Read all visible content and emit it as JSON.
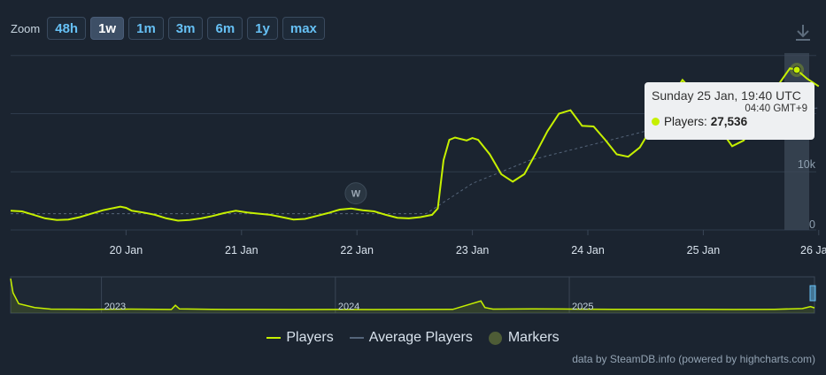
{
  "zoom": {
    "label": "Zoom",
    "buttons": [
      "48h",
      "1w",
      "1m",
      "3m",
      "6m",
      "1y",
      "max"
    ],
    "active": "1w"
  },
  "tooltip": {
    "date": "Sunday 25 Jan, 19:40 UTC",
    "timezone": "04:40 GMT+9",
    "series_label": "Players:",
    "value": "27,536"
  },
  "legend": {
    "players": "Players",
    "average": "Average Players",
    "markers": "Markers"
  },
  "credits": "data by SteamDB.info (powered by highcharts.com)",
  "colors": {
    "players": "#c6f000",
    "average": "#55657a",
    "marker": "#4e5c36",
    "background": "#1b2430"
  },
  "chart_data": {
    "type": "line",
    "x_unit": "days since 19 Jan 00:00 UTC",
    "xticks": [
      "20 Jan",
      "21 Jan",
      "22 Jan",
      "23 Jan",
      "24 Jan",
      "25 Jan",
      "26 Jan"
    ],
    "yticks": [
      "0",
      "10k"
    ],
    "ylim": [
      0,
      30000
    ],
    "grid": true,
    "legend_position": "bottom-center",
    "marker_label": "W",
    "marker": {
      "x": 2.99,
      "y": 6300
    },
    "series": [
      {
        "name": "Players",
        "points": [
          [
            0.0,
            3300
          ],
          [
            0.1,
            3200
          ],
          [
            0.2,
            2600
          ],
          [
            0.3,
            2000
          ],
          [
            0.4,
            1700
          ],
          [
            0.5,
            1800
          ],
          [
            0.6,
            2200
          ],
          [
            0.7,
            2800
          ],
          [
            0.8,
            3400
          ],
          [
            0.9,
            3800
          ],
          [
            0.95,
            4000
          ],
          [
            1.0,
            3800
          ],
          [
            1.05,
            3300
          ],
          [
            1.15,
            3000
          ],
          [
            1.25,
            2600
          ],
          [
            1.35,
            2000
          ],
          [
            1.45,
            1600
          ],
          [
            1.55,
            1700
          ],
          [
            1.65,
            2000
          ],
          [
            1.75,
            2400
          ],
          [
            1.85,
            2900
          ],
          [
            1.95,
            3300
          ],
          [
            2.05,
            3000
          ],
          [
            2.15,
            2800
          ],
          [
            2.25,
            2600
          ],
          [
            2.35,
            2200
          ],
          [
            2.45,
            1800
          ],
          [
            2.55,
            1900
          ],
          [
            2.65,
            2400
          ],
          [
            2.75,
            2900
          ],
          [
            2.85,
            3500
          ],
          [
            2.95,
            3700
          ],
          [
            3.05,
            3400
          ],
          [
            3.15,
            3200
          ],
          [
            3.25,
            2600
          ],
          [
            3.35,
            2100
          ],
          [
            3.45,
            2000
          ],
          [
            3.55,
            2200
          ],
          [
            3.65,
            2600
          ],
          [
            3.7,
            3700
          ],
          [
            3.75,
            12000
          ],
          [
            3.8,
            15500
          ],
          [
            3.85,
            15900
          ],
          [
            3.95,
            15400
          ],
          [
            4.0,
            15800
          ],
          [
            4.05,
            15500
          ],
          [
            4.15,
            13000
          ],
          [
            4.25,
            9600
          ],
          [
            4.35,
            8300
          ],
          [
            4.45,
            9600
          ],
          [
            4.55,
            13200
          ],
          [
            4.65,
            17000
          ],
          [
            4.75,
            20000
          ],
          [
            4.85,
            20600
          ],
          [
            4.95,
            17900
          ],
          [
            5.05,
            17800
          ],
          [
            5.15,
            15500
          ],
          [
            5.25,
            13000
          ],
          [
            5.35,
            12600
          ],
          [
            5.45,
            14200
          ],
          [
            5.55,
            17500
          ],
          [
            5.65,
            21000
          ],
          [
            5.75,
            23700
          ],
          [
            5.82,
            25800
          ],
          [
            5.88,
            24500
          ],
          [
            5.95,
            22000
          ],
          [
            6.05,
            20500
          ],
          [
            6.15,
            17200
          ],
          [
            6.25,
            14400
          ],
          [
            6.35,
            15400
          ],
          [
            6.45,
            18500
          ],
          [
            6.55,
            20900
          ],
          [
            6.65,
            25000
          ],
          [
            6.75,
            27800
          ],
          [
            6.81,
            27536
          ],
          [
            6.9,
            26000
          ],
          [
            7.0,
            24700
          ]
        ]
      },
      {
        "name": "Average Players",
        "points": [
          [
            0.0,
            2800
          ],
          [
            3.6,
            2800
          ],
          [
            4.0,
            8000
          ],
          [
            4.5,
            12000
          ],
          [
            5.0,
            14500
          ],
          [
            5.5,
            17000
          ],
          [
            6.0,
            19500
          ],
          [
            7.0,
            21000
          ]
        ]
      }
    ],
    "navigator": {
      "labels": [
        "2023",
        "2024",
        "2025"
      ],
      "points": [
        [
          0,
          3000
        ],
        [
          0.003,
          1700
        ],
        [
          0.01,
          700
        ],
        [
          0.03,
          350
        ],
        [
          0.05,
          200
        ],
        [
          0.1,
          180
        ],
        [
          0.15,
          200
        ],
        [
          0.2,
          170
        ],
        [
          0.205,
          550
        ],
        [
          0.21,
          220
        ],
        [
          0.25,
          180
        ],
        [
          0.3,
          170
        ],
        [
          0.35,
          160
        ],
        [
          0.4,
          170
        ],
        [
          0.45,
          160
        ],
        [
          0.5,
          170
        ],
        [
          0.55,
          180
        ],
        [
          0.585,
          950
        ],
        [
          0.59,
          350
        ],
        [
          0.6,
          200
        ],
        [
          0.65,
          230
        ],
        [
          0.7,
          200
        ],
        [
          0.75,
          190
        ],
        [
          0.8,
          180
        ],
        [
          0.85,
          190
        ],
        [
          0.9,
          170
        ],
        [
          0.95,
          190
        ],
        [
          0.985,
          250
        ],
        [
          0.995,
          430
        ],
        [
          1.0,
          320
        ]
      ]
    }
  }
}
